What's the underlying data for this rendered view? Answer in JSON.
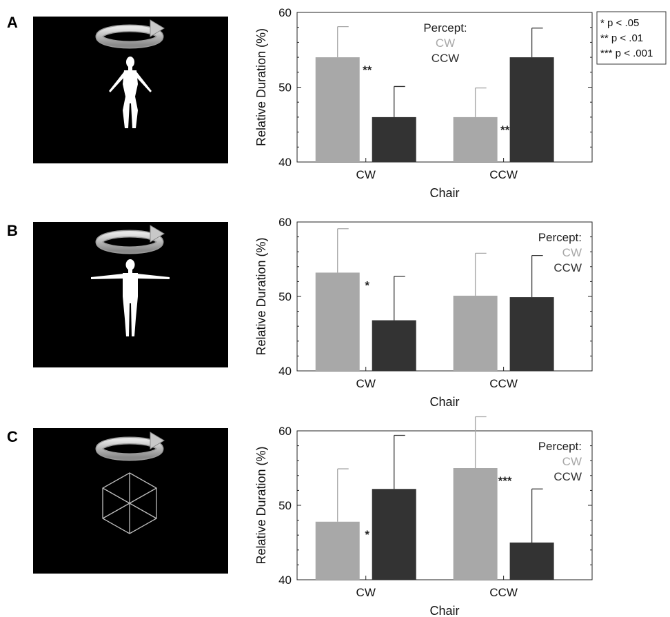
{
  "significance_key": [
    "* p < .05",
    "** p < .01",
    "*** p < .001"
  ],
  "colors": {
    "cw": "#a8a8a8",
    "ccw": "#333333",
    "error_bar_cw": "#a8a8a8",
    "error_bar_ccw": "#333333"
  },
  "stimuli": [
    {
      "letter": "A",
      "icon": "female-figure-icon"
    },
    {
      "letter": "B",
      "icon": "male-figure-icon"
    },
    {
      "letter": "C",
      "icon": "necker-cube-icon"
    }
  ],
  "chart_data": [
    {
      "type": "bar",
      "panel": "A",
      "title": "",
      "xlabel": "Chair",
      "ylabel": "Relative Duration (%)",
      "ylim": [
        40,
        60
      ],
      "yticks": [
        40,
        50,
        60
      ],
      "categories": [
        "CW",
        "CCW"
      ],
      "legend_title": "Percept:",
      "legend_position": "top-center",
      "series": [
        {
          "name": "CW",
          "values": [
            54.0,
            46.0
          ],
          "errors": [
            4.1,
            3.9
          ]
        },
        {
          "name": "CCW",
          "values": [
            46.0,
            54.0
          ],
          "errors": [
            4.1,
            3.9
          ]
        }
      ],
      "significance": [
        "**",
        "**"
      ]
    },
    {
      "type": "bar",
      "panel": "B",
      "title": "",
      "xlabel": "Chair",
      "ylabel": "Relative Duration (%)",
      "ylim": [
        40,
        60
      ],
      "yticks": [
        40,
        50,
        60
      ],
      "categories": [
        "CW",
        "CCW"
      ],
      "legend_title": "Percept:",
      "legend_position": "top-right",
      "series": [
        {
          "name": "CW",
          "values": [
            53.2,
            50.1
          ],
          "errors": [
            5.9,
            5.7
          ]
        },
        {
          "name": "CCW",
          "values": [
            46.8,
            49.9
          ],
          "errors": [
            5.9,
            5.6
          ]
        }
      ],
      "significance": [
        "*",
        ""
      ]
    },
    {
      "type": "bar",
      "panel": "C",
      "title": "",
      "xlabel": "Chair",
      "ylabel": "Relative Duration (%)",
      "ylim": [
        40,
        60
      ],
      "yticks": [
        40,
        50,
        60
      ],
      "categories": [
        "CW",
        "CCW"
      ],
      "legend_title": "Percept:",
      "legend_position": "top-right",
      "series": [
        {
          "name": "CW",
          "values": [
            47.8,
            55.0
          ],
          "errors": [
            7.1,
            6.9
          ]
        },
        {
          "name": "CCW",
          "values": [
            52.2,
            45.0
          ],
          "errors": [
            7.2,
            7.2
          ]
        }
      ],
      "significance": [
        "*",
        "***"
      ]
    }
  ]
}
